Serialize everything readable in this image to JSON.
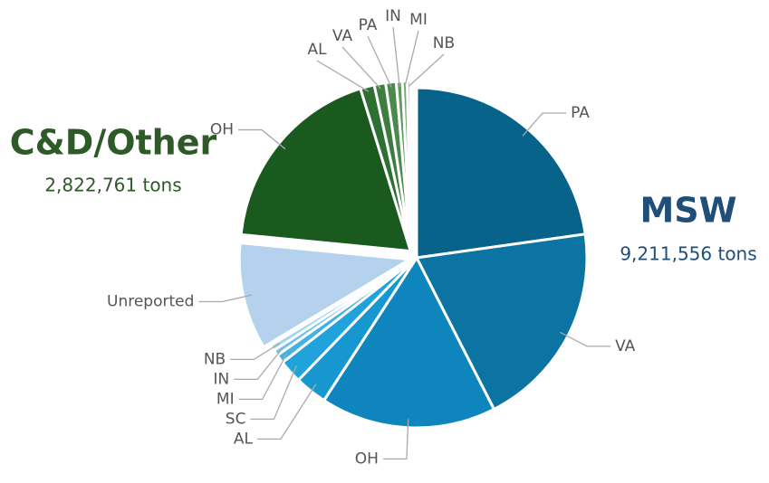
{
  "chart_data": {
    "type": "pie",
    "series": [
      {
        "name": "MSW",
        "color": "#1f4e79",
        "total": 9211556,
        "total_label": "9,211,556 tons",
        "categories": [
          "PA",
          "VA",
          "OH",
          "AL",
          "SC",
          "MI",
          "IN",
          "NB",
          "Unreported"
        ],
        "values": [
          2741000,
          2373000,
          2006000,
          368000,
          267000,
          100000,
          67000,
          67000,
          1222556
        ],
        "colors": [
          "#08638a",
          "#0b74a3",
          "#0e86bd",
          "#1697d0",
          "#1fa3da",
          "#45b1e0",
          "#6fc2e7",
          "#9dd4ef",
          "#b4d2ee"
        ]
      },
      {
        "name": "C&D/Other",
        "color": "#2d5a27",
        "total": 2822761,
        "total_label": "2,822,761 tons",
        "categories": [
          "OH",
          "AL",
          "VA",
          "PA",
          "IN",
          "MI",
          "NB"
        ],
        "values": [
          2250000,
          160000,
          130000,
          120000,
          70000,
          55000,
          37761
        ],
        "colors": [
          "#1a5a1e",
          "#2e6f32",
          "#3d7d40",
          "#4a8a4c",
          "#5d9960",
          "#74a876",
          "#8cb88d"
        ]
      }
    ]
  }
}
